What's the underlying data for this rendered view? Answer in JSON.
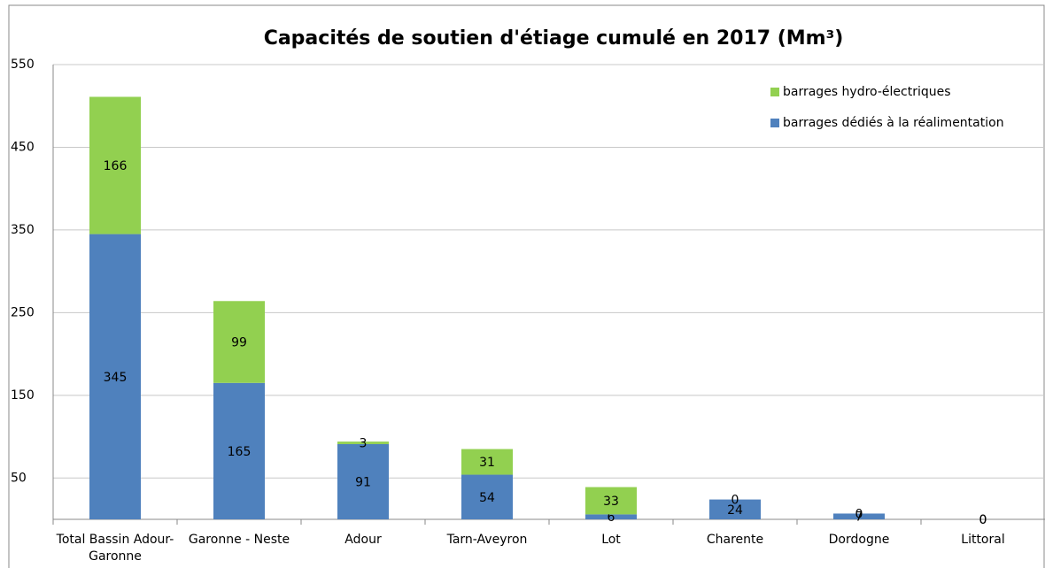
{
  "chart_data": {
    "type": "stacked_bar",
    "title": "Capacités de soutien d'étiage cumulé en 2017 (Mm³)",
    "categories": [
      "Total Bassin Adour-Garonne",
      "Garonne - Neste",
      "Adour",
      "Tarn-Aveyron",
      "Lot",
      "Charente",
      "Dordogne",
      "Littoral"
    ],
    "series": [
      {
        "name": "barrages dédiés à la réalimentation",
        "color": "#4f81bd",
        "values": [
          345,
          165,
          91,
          54,
          6,
          24,
          7,
          0
        ]
      },
      {
        "name": "barrages hydro-électriques",
        "color": "#92d050",
        "values": [
          166,
          99,
          3,
          31,
          33,
          0,
          0,
          0
        ]
      }
    ],
    "ylim": [
      0,
      550
    ],
    "yticks": [
      50,
      150,
      250,
      350,
      450,
      550
    ],
    "grid": true,
    "legend": "top-right"
  }
}
